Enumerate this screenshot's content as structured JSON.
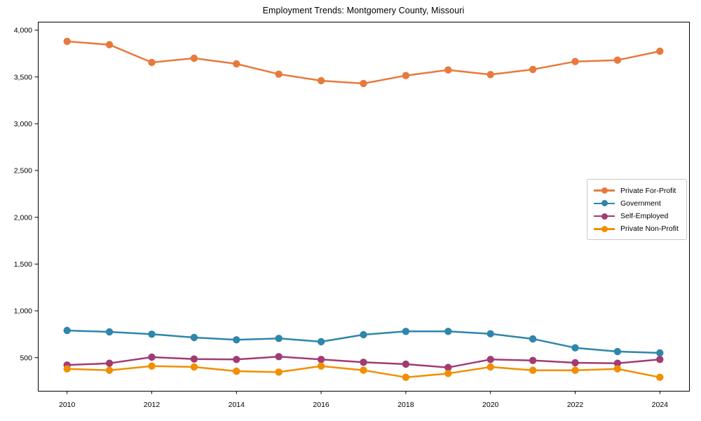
{
  "chart_data": {
    "type": "line",
    "title": "Employment Trends: Montgomery County, Missouri",
    "xlabel": "",
    "ylabel": "",
    "x": [
      2010,
      2011,
      2012,
      2013,
      2014,
      2015,
      2016,
      2017,
      2018,
      2019,
      2020,
      2021,
      2022,
      2023,
      2024
    ],
    "series": [
      {
        "name": "Private For-Profit",
        "color": "#E8793D",
        "values": [
          3880,
          3845,
          3655,
          3700,
          3640,
          3530,
          3460,
          3430,
          3515,
          3575,
          3525,
          3580,
          3665,
          3680,
          3775
        ]
      },
      {
        "name": "Government",
        "color": "#2E86AB",
        "values": [
          790,
          775,
          750,
          715,
          690,
          705,
          670,
          745,
          780,
          780,
          755,
          700,
          605,
          565,
          550
        ]
      },
      {
        "name": "Self-Employed",
        "color": "#A23B72",
        "values": [
          420,
          440,
          505,
          485,
          480,
          510,
          480,
          450,
          430,
          395,
          480,
          470,
          445,
          440,
          480
        ]
      },
      {
        "name": "Private Non-Profit",
        "color": "#F18F01",
        "values": [
          380,
          365,
          410,
          400,
          355,
          345,
          410,
          365,
          290,
          330,
          400,
          365,
          365,
          380,
          290
        ]
      }
    ],
    "xticks": [
      2010,
      2012,
      2014,
      2016,
      2018,
      2020,
      2022,
      2024
    ],
    "yticks": [
      500,
      1000,
      1500,
      2000,
      2500,
      3000,
      3500,
      4000
    ],
    "ytick_labels": [
      "500",
      "1,000",
      "1,500",
      "2,000",
      "2,500",
      "3,000",
      "3,500",
      "4,000"
    ],
    "xlim": [
      2009.31,
      2024.69
    ],
    "ylim": [
      145,
      4090
    ],
    "grid": false,
    "legend_position": "center-right",
    "frame_color": "#000000"
  }
}
